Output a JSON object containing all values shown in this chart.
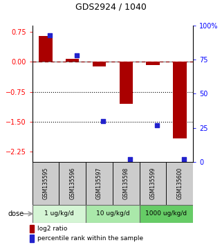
{
  "title": "GDS2924 / 1040",
  "samples": [
    "GSM135595",
    "GSM135596",
    "GSM135597",
    "GSM135598",
    "GSM135599",
    "GSM135600"
  ],
  "log2_ratio": [
    0.65,
    0.07,
    -0.12,
    -1.05,
    -0.08,
    -1.92
  ],
  "percentile_rank": [
    93,
    78,
    30,
    2,
    27,
    2
  ],
  "ylim_left": [
    -2.5,
    0.9
  ],
  "ylim_right": [
    0,
    100
  ],
  "yticks_left": [
    -2.25,
    -1.5,
    -0.75,
    0,
    0.75
  ],
  "yticks_right_vals": [
    0,
    25,
    50,
    75,
    100
  ],
  "yticks_right_labels": [
    "0",
    "25",
    "50",
    "75",
    "100%"
  ],
  "hlines": [
    -0.75,
    -1.5
  ],
  "dashed_hline": 0,
  "bar_color": "#aa0000",
  "dot_color": "#2222cc",
  "dose_groups": [
    {
      "label": "1 ug/kg/d",
      "n": 2,
      "color": "#d5f5d5"
    },
    {
      "label": "10 ug/kg/d",
      "n": 2,
      "color": "#aae8aa"
    },
    {
      "label": "1000 ug/kg/d",
      "n": 2,
      "color": "#66cc66"
    }
  ],
  "dose_label": "dose",
  "legend_bar": "log2 ratio",
  "legend_dot": "percentile rank within the sample",
  "bar_width": 0.5,
  "dot_size": 22,
  "figure_width": 3.21,
  "figure_height": 3.54
}
